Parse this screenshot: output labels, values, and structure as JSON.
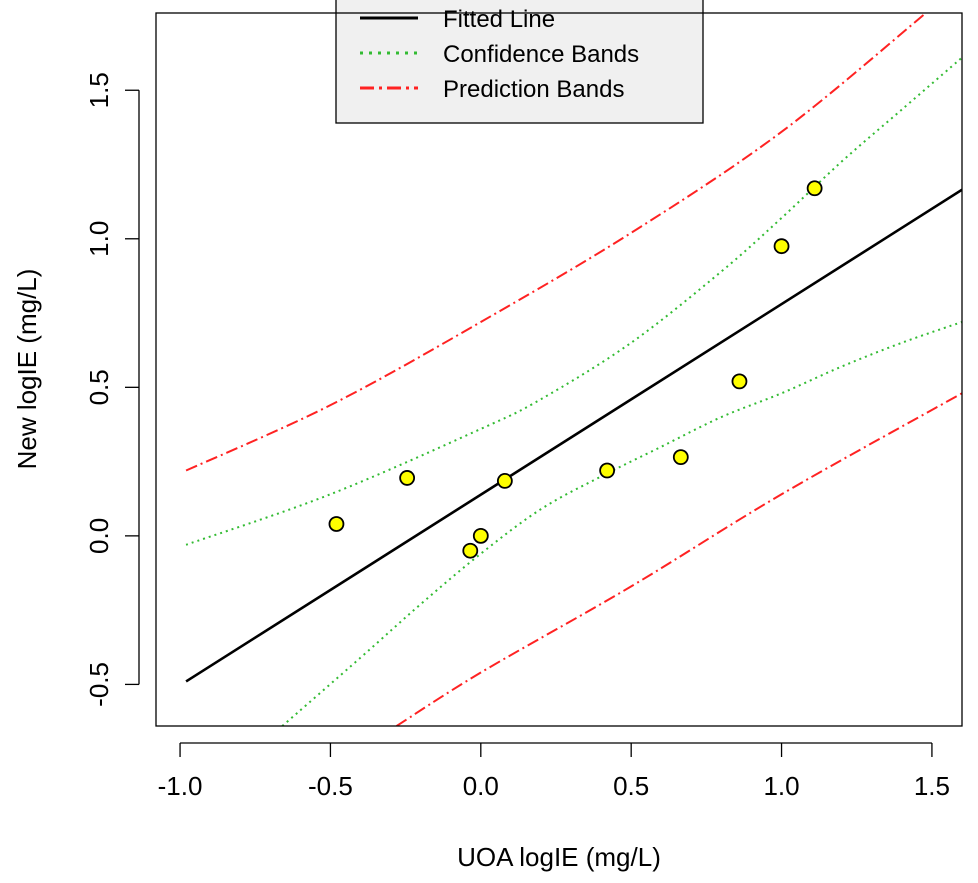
{
  "chart_data": {
    "type": "scatter",
    "title": "",
    "xlabel": "UOA logIE (mg/L)",
    "ylabel": "New logIE (mg/L)",
    "xlim": [
      -1.08,
      1.6
    ],
    "ylim": [
      -0.64,
      1.76
    ],
    "xticks": [
      -1.0,
      -0.5,
      0.0,
      0.5,
      1.0,
      1.5
    ],
    "xtick_labels": [
      "-1.0",
      "-0.5",
      "0.0",
      "0.5",
      "1.0",
      "1.5"
    ],
    "yticks": [
      -0.5,
      0.0,
      0.5,
      1.0,
      1.5
    ],
    "ytick_labels": [
      "-0.5",
      "0.0",
      "0.5",
      "1.0",
      "1.5"
    ],
    "grid": false,
    "legend_position": "top-center",
    "points": {
      "x": [
        -0.48,
        -0.245,
        -0.035,
        0.0,
        0.08,
        0.42,
        0.665,
        0.86,
        1.0,
        1.11
      ],
      "y": [
        0.04,
        0.195,
        -0.05,
        0.0,
        0.185,
        0.22,
        0.265,
        0.52,
        0.975,
        1.17
      ],
      "color": "#ffff00",
      "edge_color": "#000000"
    },
    "fitted_line": {
      "name": "Fitted Line",
      "color": "#000000",
      "x": [
        -0.98,
        1.6
      ],
      "y": [
        -0.49,
        1.165
      ]
    },
    "confidence_bands": {
      "name": "Confidence Bands",
      "color": "#33bb33",
      "upper": {
        "x": [
          -0.98,
          -0.5,
          0.0,
          0.2,
          0.5,
          0.8,
          1.0,
          1.2,
          1.4,
          1.6
        ],
        "y": [
          -0.03,
          0.14,
          0.36,
          0.46,
          0.65,
          0.89,
          1.07,
          1.26,
          1.435,
          1.61
        ]
      },
      "lower": {
        "x": [
          -0.66,
          -0.4,
          -0.2,
          0.0,
          0.2,
          0.4,
          0.6,
          0.8,
          1.0,
          1.2,
          1.4,
          1.6
        ],
        "y": [
          -0.64,
          -0.41,
          -0.23,
          -0.06,
          0.09,
          0.2,
          0.3,
          0.4,
          0.48,
          0.57,
          0.65,
          0.72
        ]
      }
    },
    "prediction_bands": {
      "name": "Prediction Bands",
      "color": "#ff2222",
      "upper": {
        "x": [
          -0.98,
          -0.5,
          0.0,
          0.5,
          1.0,
          1.48
        ],
        "y": [
          0.22,
          0.44,
          0.72,
          1.02,
          1.36,
          1.76
        ]
      },
      "lower": {
        "x": [
          -0.28,
          0.0,
          0.5,
          1.0,
          1.6
        ],
        "y": [
          -0.64,
          -0.46,
          -0.17,
          0.14,
          0.48
        ]
      }
    },
    "legend": [
      {
        "label": "Fitted Line",
        "style": "solid",
        "color": "#000000"
      },
      {
        "label": "Confidence Bands",
        "style": "dotted",
        "color": "#33bb33"
      },
      {
        "label": "Prediction Bands",
        "style": "dashdot",
        "color": "#ff2222"
      }
    ]
  }
}
